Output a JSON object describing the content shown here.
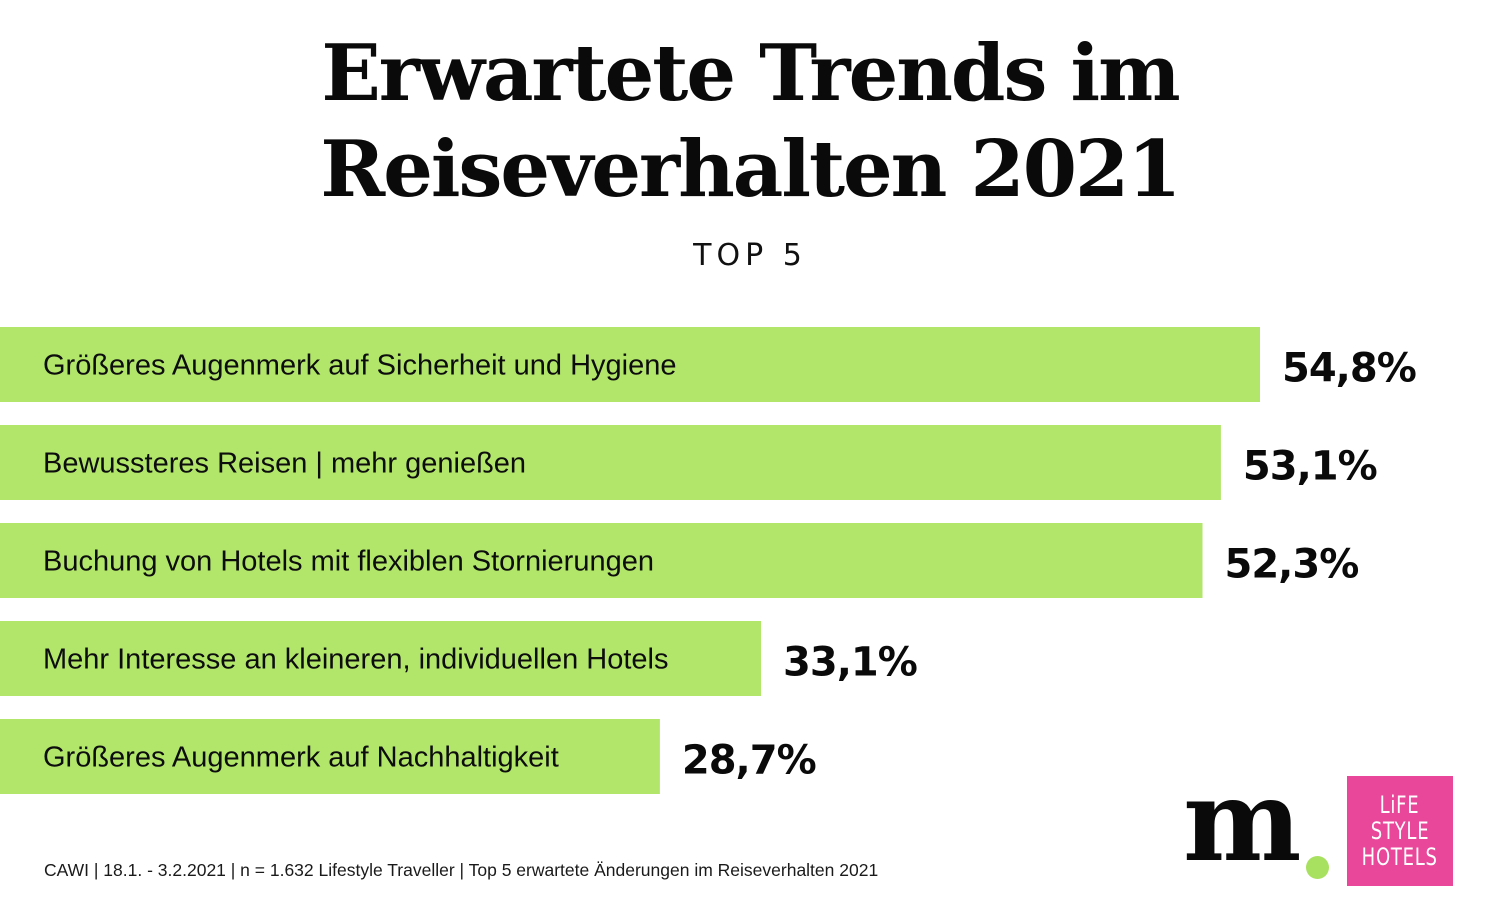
{
  "header": {
    "title_line1": "Erwartete Trends im",
    "title_line2": "Reiseverhalten 2021",
    "subtitle": "TOP 5"
  },
  "colors": {
    "bar": "#b2e66b",
    "text": "#0a0a0a",
    "background": "#ffffff",
    "logo_dot": "#a8e05f",
    "logo_pink": "#e8479a"
  },
  "chart_data": {
    "type": "bar",
    "orientation": "horizontal",
    "title": "Erwartete Trends im Reiseverhalten 2021",
    "subtitle": "TOP 5",
    "xlabel": "",
    "ylabel": "",
    "unit": "%",
    "grid": false,
    "legend": "none",
    "xlim": [
      0,
      54.8
    ],
    "categories": [
      "Größeres Augenmerk auf Sicherheit und Hygiene",
      "Bewussteres Reisen | mehr genießen",
      "Buchung von Hotels mit flexiblen Stornierungen",
      "Mehr Interesse an kleineren, individuellen Hotels",
      "Größeres Augenmerk auf Nachhaltigkeit"
    ],
    "values": [
      54.8,
      53.1,
      52.3,
      33.1,
      28.7
    ],
    "value_labels": [
      "54,8%",
      "53,1%",
      "52,3%",
      "33,1%",
      "28,7%"
    ]
  },
  "footer": {
    "note": "CAWI | 18.1. - 3.2.2021 | n = 1.632 Lifestyle Traveller | Top 5 erwartete Änderungen im Reiseverhalten 2021",
    "logo_m_text": "m",
    "logo_lifestyle_lines": [
      "LiFE",
      "STYLE",
      "HOTELS"
    ]
  }
}
